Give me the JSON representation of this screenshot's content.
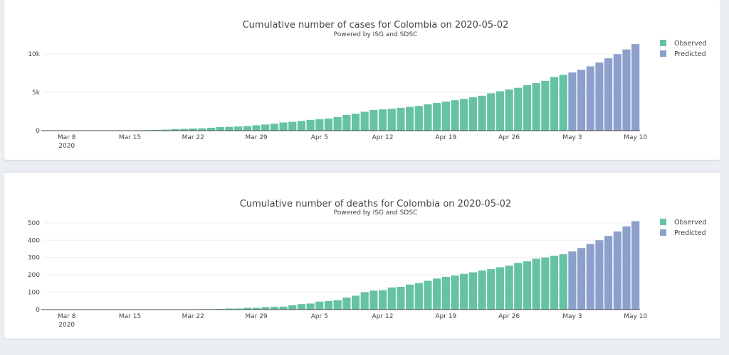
{
  "colors": {
    "observed": "#66c2a5",
    "predicted": "#8da0cb",
    "background": "#ebeef3"
  },
  "chart_data": [
    {
      "type": "bar",
      "title": "Cumulative number of cases for Colombia on 2020-05-02",
      "subtitle": "Powered by ISG and SDSC",
      "xlabel": "",
      "ylabel": "",
      "x_start": "2020-03-06",
      "x_ticks": [
        "Mar 8",
        "Mar 15",
        "Mar 22",
        "Mar 29",
        "Apr 5",
        "Apr 12",
        "Apr 19",
        "Apr 26",
        "May 3",
        "May 10"
      ],
      "x_tick_year": "2020",
      "y_ticks": [
        {
          "value": 0,
          "label": "0"
        },
        {
          "value": 5000,
          "label": "5k"
        },
        {
          "value": 10000,
          "label": "10k"
        }
      ],
      "ylim": [
        0,
        11500
      ],
      "grid": true,
      "legend": "top-right",
      "series": [
        {
          "name": "Observed",
          "values": [
            1,
            1,
            1,
            3,
            3,
            9,
            9,
            16,
            24,
            45,
            57,
            75,
            102,
            128,
            196,
            231,
            277,
            306,
            378,
            470,
            491,
            539,
            608,
            702,
            798,
            906,
            1065,
            1161,
            1267,
            1406,
            1485,
            1579,
            1780,
            2054,
            2223,
            2473,
            2709,
            2776,
            2852,
            2979,
            3105,
            3233,
            3439,
            3621,
            3792,
            3977,
            4149,
            4356,
            4561,
            4881,
            5142,
            5379,
            5597,
            5949,
            6207,
            6507,
            7006,
            7285
          ]
        },
        {
          "name": "Predicted",
          "values": [
            7600,
            7950,
            8400,
            8900,
            9450,
            10000,
            10600,
            11300
          ]
        }
      ]
    },
    {
      "type": "bar",
      "title": "Cumulative number of deaths for Colombia on 2020-05-02",
      "subtitle": "Powered by ISG and SDSC",
      "xlabel": "",
      "ylabel": "",
      "x_start": "2020-03-06",
      "x_ticks": [
        "Mar 8",
        "Mar 15",
        "Mar 22",
        "Mar 29",
        "Apr 5",
        "Apr 12",
        "Apr 19",
        "Apr 26",
        "May 3",
        "May 10"
      ],
      "x_tick_year": "2020",
      "y_ticks": [
        {
          "value": 0,
          "label": "0"
        },
        {
          "value": 100,
          "label": "100"
        },
        {
          "value": 200,
          "label": "200"
        },
        {
          "value": 300,
          "label": "300"
        },
        {
          "value": 400,
          "label": "400"
        },
        {
          "value": 500,
          "label": "500"
        }
      ],
      "ylim": [
        0,
        520
      ],
      "grid": true,
      "legend": "top-right",
      "series": [
        {
          "name": "Observed",
          "values": [
            0,
            0,
            0,
            0,
            0,
            0,
            0,
            0,
            0,
            0,
            0,
            0,
            0,
            0,
            0,
            0,
            0,
            3,
            3,
            4,
            6,
            6,
            10,
            10,
            14,
            16,
            17,
            25,
            32,
            35,
            46,
            50,
            54,
            69,
            80,
            100,
            109,
            112,
            127,
            131,
            144,
            153,
            166,
            179,
            189,
            196,
            206,
            215,
            225,
            233,
            244,
            253,
            269,
            278,
            293,
            300,
            310,
            319
          ]
        },
        {
          "name": "Predicted",
          "values": [
            335,
            355,
            378,
            400,
            425,
            450,
            480,
            510
          ]
        }
      ]
    }
  ]
}
